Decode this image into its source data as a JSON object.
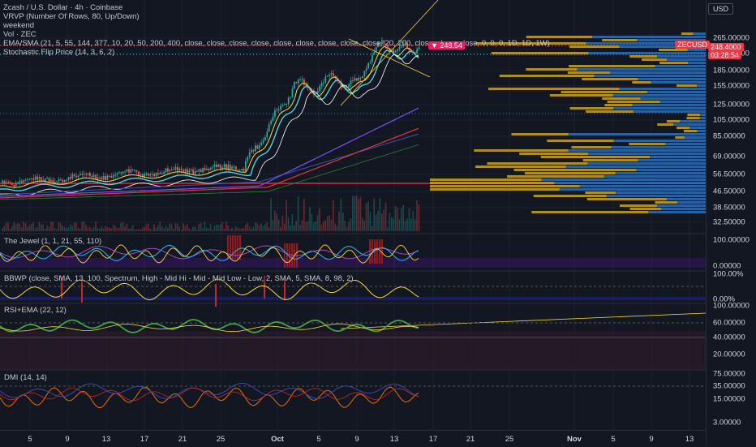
{
  "legend": {
    "title": "Zcash / U.S. Dollar · 4h · Coinbase",
    "lines": [
      "VRVP (Number Of Rows, 80, Up/Down)",
      "weekend",
      "Vol · ZEC",
      "EMA/SMA (21, 5, 55, 144, 377, 10, 20, 50, 200, 400, close, close, close, close, close, close, close, close, close, 20, 200, close, close, close, 0, 0, 0, 1D, 1D, 1W)",
      "Stochastic Flip Price (14, 3, 6, 2)"
    ]
  },
  "panes": {
    "jewel": "The Jewel (1, 1, 21, 55, 110)",
    "bbwp": "BBWP (close, SMA, 13, 100, Spectrum, High - Mid Hi - Mid - Mid Low - Low, 2, SMA, 5, SMA, 8, 98, 2)",
    "rsi": "RSI+EMA (22, 12)",
    "dmi": "DMI (14, 14)"
  },
  "axis": {
    "currency": "USD",
    "price_ticks": [
      "265.00000",
      "225.00000",
      "185.00000",
      "155.00000",
      "125.00000",
      "105.00000",
      "85.00000",
      "69.00000",
      "56.50000",
      "46.50000",
      "38.50000",
      "32.50000"
    ],
    "jewel_ticks": [
      "100.00000",
      "0.00000"
    ],
    "bbwp_ticks": [
      "100.00%",
      "0.00%"
    ],
    "rsi_ticks": [
      "100.00000",
      "60.00000",
      "40.00000",
      "20.00000"
    ],
    "dmi_ticks": [
      "75.00000",
      "35.00000",
      "15.00000",
      "3.00000"
    ],
    "symbol_tag": "ZECUSD",
    "price_tag": "248.4000",
    "countdown_tag": "03:28:54",
    "flip_tag": "248.54"
  },
  "xaxis": [
    "5",
    "9",
    "13",
    "17",
    "21",
    "25",
    "Oct",
    "5",
    "9",
    "13",
    "17",
    "21",
    "25",
    "Nov",
    "5",
    "9",
    "13"
  ],
  "colors": {
    "bg": "#131722",
    "up": "#26a69a",
    "down": "#ef5350",
    "vp_up": "#c9a227",
    "vp_down": "#2e6db4",
    "price": "#f23645"
  }
}
